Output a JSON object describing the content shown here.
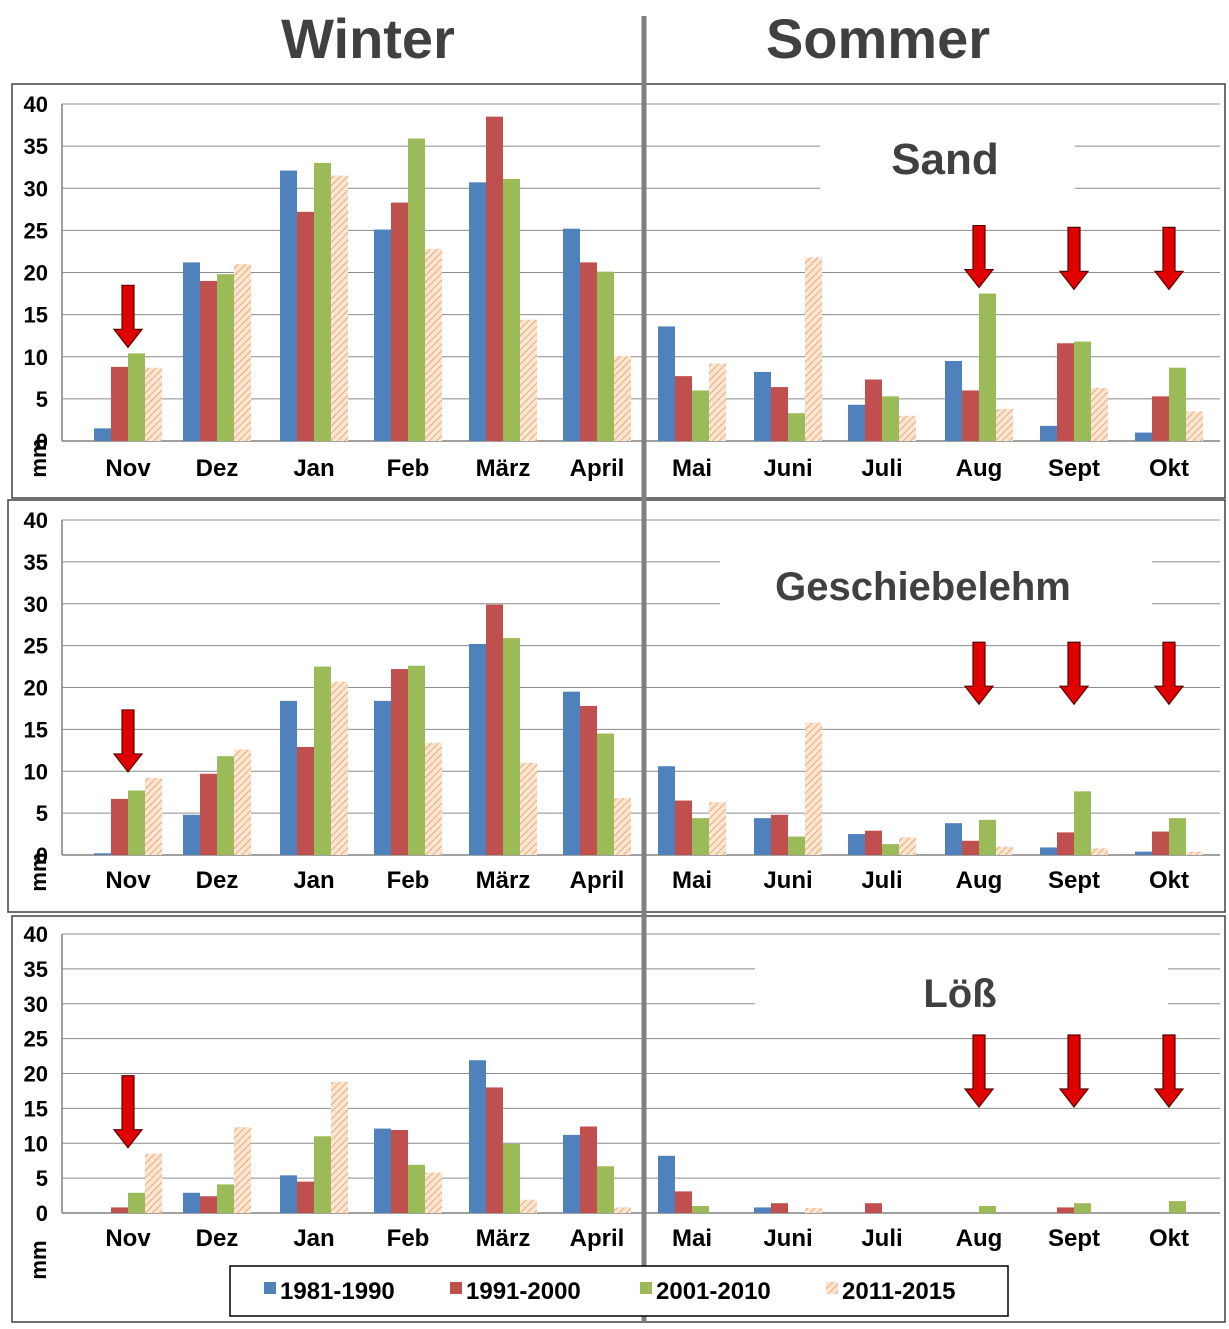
{
  "headers": {
    "winter": "Winter",
    "summer": "Sommer"
  },
  "unit_label": "mm",
  "colors": {
    "1981-1990": "#4f81bd",
    "1991-2000": "#c0504d",
    "2001-2010": "#9bbb59",
    "2011-2015": "#f7c6a3",
    "arrow": "#e00000"
  },
  "chart_data": [
    {
      "type": "bar",
      "title": "Sand",
      "ylabel": "mm",
      "ylim": [
        0,
        40
      ],
      "yticks": [
        "0",
        "5",
        "10",
        "15",
        "20",
        "25",
        "30",
        "35",
        "40"
      ],
      "categories": [
        "Nov",
        "Dez",
        "Jan",
        "Feb",
        "März",
        "April",
        "Mai",
        "Juni",
        "Juli",
        "Aug",
        "Sept",
        "Okt"
      ],
      "series": [
        {
          "name": "1981-1990",
          "values": [
            1.5,
            21.2,
            32.1,
            25.1,
            30.7,
            25.2,
            13.6,
            8.2,
            4.3,
            9.5,
            1.8,
            1.0
          ]
        },
        {
          "name": "1991-2000",
          "values": [
            8.8,
            19.0,
            27.2,
            28.3,
            38.5,
            21.2,
            7.7,
            6.4,
            7.3,
            6.0,
            11.6,
            5.3
          ]
        },
        {
          "name": "2001-2010",
          "values": [
            10.4,
            19.8,
            33.0,
            35.9,
            31.1,
            20.1,
            6.0,
            3.3,
            5.3,
            17.5,
            11.8,
            8.7
          ]
        },
        {
          "name": "2011-2015",
          "values": [
            8.7,
            21.0,
            31.5,
            22.8,
            14.4,
            10.1,
            9.2,
            21.8,
            3.0,
            3.8,
            6.3,
            3.5
          ]
        }
      ],
      "arrows": [
        "Nov",
        "Aug",
        "Sept",
        "Okt"
      ]
    },
    {
      "type": "bar",
      "title": "Geschiebelehm",
      "ylabel": "mm",
      "ylim": [
        0,
        40
      ],
      "yticks": [
        "0",
        "5",
        "10",
        "15",
        "20",
        "25",
        "30",
        "35",
        "40"
      ],
      "categories": [
        "Nov",
        "Dez",
        "Jan",
        "Feb",
        "März",
        "April",
        "Mai",
        "Juni",
        "Juli",
        "Aug",
        "Sept",
        "Okt"
      ],
      "series": [
        {
          "name": "1981-1990",
          "values": [
            0.2,
            4.8,
            18.4,
            18.4,
            25.2,
            19.5,
            10.6,
            4.4,
            2.5,
            3.8,
            0.9,
            0.4
          ]
        },
        {
          "name": "1991-2000",
          "values": [
            6.7,
            9.7,
            12.9,
            22.2,
            29.9,
            17.8,
            6.5,
            4.8,
            2.9,
            1.7,
            2.7,
            2.8
          ]
        },
        {
          "name": "2001-2010",
          "values": [
            7.7,
            11.8,
            22.5,
            22.6,
            25.9,
            14.5,
            4.4,
            2.2,
            1.3,
            4.2,
            7.6,
            4.4
          ]
        },
        {
          "name": "2011-2015",
          "values": [
            9.2,
            12.6,
            20.7,
            13.4,
            11.0,
            6.8,
            6.3,
            15.8,
            2.1,
            1.0,
            0.8,
            0.4
          ]
        }
      ],
      "arrows": [
        "Nov",
        "Aug",
        "Sept",
        "Okt"
      ]
    },
    {
      "type": "bar",
      "title": "Löß",
      "ylabel": "mm",
      "ylim": [
        0,
        40
      ],
      "yticks": [
        "0",
        "5",
        "10",
        "15",
        "20",
        "25",
        "30",
        "35",
        "40"
      ],
      "categories": [
        "Nov",
        "Dez",
        "Jan",
        "Feb",
        "März",
        "April",
        "Mai",
        "Juni",
        "Juli",
        "Aug",
        "Sept",
        "Okt"
      ],
      "series": [
        {
          "name": "1981-1990",
          "values": [
            0.0,
            2.9,
            5.4,
            12.1,
            21.9,
            11.2,
            8.2,
            0.8,
            0.0,
            0.0,
            0.0,
            0.0
          ]
        },
        {
          "name": "1991-2000",
          "values": [
            0.8,
            2.4,
            4.5,
            11.9,
            18.0,
            12.4,
            3.1,
            1.4,
            1.4,
            0.0,
            0.8,
            0.0
          ]
        },
        {
          "name": "2001-2010",
          "values": [
            2.9,
            4.1,
            11.0,
            6.9,
            9.9,
            6.7,
            1.0,
            0.0,
            0.0,
            1.0,
            1.4,
            1.7
          ]
        },
        {
          "name": "2011-2015",
          "values": [
            8.5,
            12.3,
            18.8,
            5.8,
            1.9,
            0.8,
            0.0,
            0.7,
            0.0,
            0.0,
            0.0,
            0.0
          ]
        }
      ],
      "arrows": [
        "Nov",
        "Aug",
        "Sept",
        "Okt"
      ]
    }
  ],
  "legend": {
    "placement": "bottom",
    "entries": [
      "1981-1990",
      "1991-2000",
      "2001-2010",
      "2011-2015"
    ]
  }
}
